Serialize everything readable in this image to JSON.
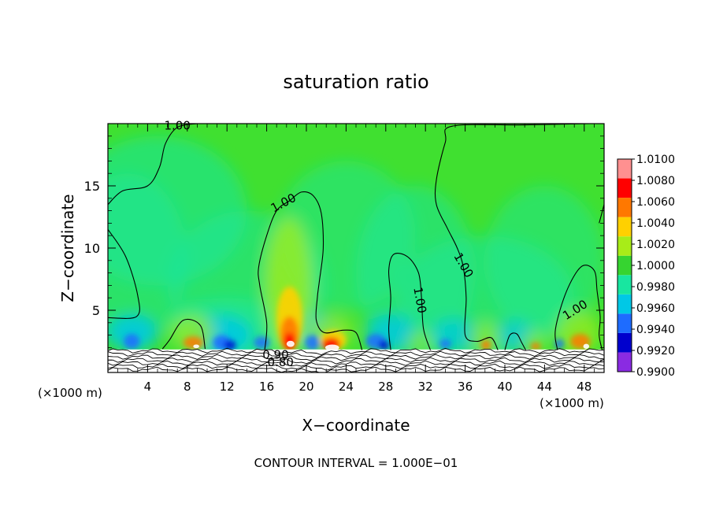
{
  "chart_data": {
    "type": "heatmap",
    "title": "saturation ratio",
    "xlabel": "X−coordinate",
    "ylabel": "Z−coordinate",
    "x_unit_left": "(×1000 m)",
    "x_unit_right": "(×1000 m)",
    "footer": "CONTOUR INTERVAL = 1.000E−01",
    "xlim": [
      0,
      50
    ],
    "ylim": [
      0,
      20
    ],
    "x_ticks": [
      4,
      8,
      12,
      16,
      20,
      24,
      28,
      32,
      36,
      40,
      44,
      48
    ],
    "x_tick_labels": [
      "4",
      "8",
      "12",
      "16",
      "20",
      "24",
      "28",
      "32",
      "36",
      "40",
      "44",
      "48"
    ],
    "y_ticks": [
      5,
      10,
      15
    ],
    "y_tick_labels": [
      "5",
      "10",
      "15"
    ],
    "colorbar": {
      "levels": [
        0.99,
        0.992,
        0.994,
        0.996,
        0.998,
        1.0,
        1.002,
        1.004,
        1.006,
        1.008,
        1.01
      ],
      "labels": [
        "0.9900",
        "0.9920",
        "0.9940",
        "0.9960",
        "0.9980",
        "1.0000",
        "1.0020",
        "1.0040",
        "1.0060",
        "1.0080",
        "1.0100"
      ],
      "colors": [
        "#8a2be2",
        "#0000cd",
        "#1e6cff",
        "#00c8e6",
        "#18e6a0",
        "#36d430",
        "#a8ec18",
        "#ffd000",
        "#ff7800",
        "#ff0000",
        "#ff9090"
      ]
    },
    "background_color": "#40e030",
    "contour_labels": [
      {
        "text": "1.00",
        "x": 7,
        "y": 19.8,
        "rotate": 0
      },
      {
        "text": "1.00",
        "x": 17.7,
        "y": 13.6,
        "rotate": -28
      },
      {
        "text": "1.00",
        "x": 35.8,
        "y": 8.6,
        "rotate": 60
      },
      {
        "text": "1.00",
        "x": 31.4,
        "y": 5.8,
        "rotate": 80
      },
      {
        "text": "1.00",
        "x": 47.1,
        "y": 5.0,
        "rotate": -32
      },
      {
        "text": "0.90",
        "x": 16.9,
        "y": 1.4,
        "rotate": 0
      },
      {
        "text": "0.80",
        "x": 17.4,
        "y": 0.8,
        "rotate": 0
      }
    ]
  }
}
